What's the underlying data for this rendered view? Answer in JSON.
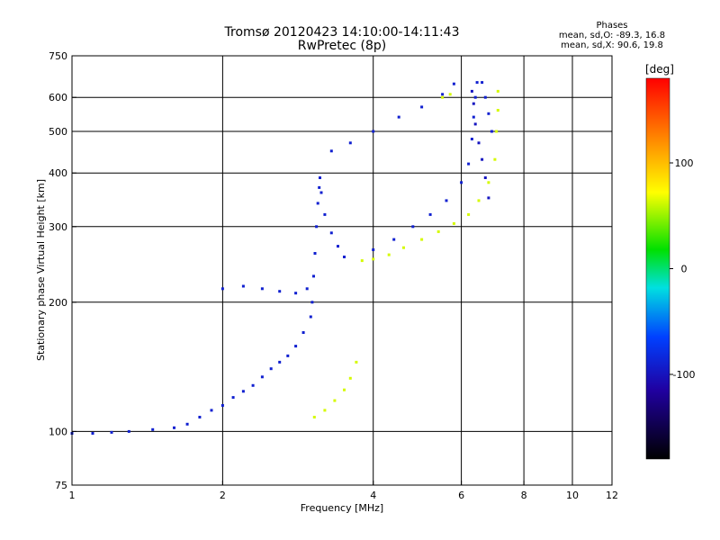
{
  "header": {
    "title_line1": "Tromsø 20120423 14:10:00-14:11:43",
    "title_line2": "RwPretec (8p)"
  },
  "phases_box": {
    "heading": "Phases",
    "line_o": "mean, sd,O: -89.3, 16.8",
    "line_x": "mean, sd,X:  90.6, 19.8"
  },
  "colorbar": {
    "unit_label": "[deg]",
    "ticks": [
      "100",
      "0",
      "-100"
    ],
    "tick_values": [
      100,
      0,
      -100
    ],
    "min": -180,
    "max": 180
  },
  "colors": {
    "o_mode": "#1f3fe0",
    "x_mode": "#e6e619",
    "grid": "#000000"
  },
  "chart_data": {
    "type": "scatter",
    "title": "Tromsø 20120423 14:10:00-14:11:43",
    "subtitle": "RwPretec (8p)",
    "xlabel": "Frequency [MHz]",
    "ylabel": "Stationary phase Virtual Height [km]",
    "xscale": "log",
    "yscale": "log",
    "xlim": [
      1,
      12
    ],
    "ylim": [
      75,
      750
    ],
    "grid": true,
    "x_ticks": [
      1,
      2,
      4,
      6,
      8,
      10,
      12
    ],
    "x_tick_labels": [
      "1",
      "2",
      "4",
      "6",
      "8",
      "10",
      "12"
    ],
    "x_grid": [
      2,
      4,
      6,
      8,
      10
    ],
    "y_ticks": [
      75,
      100,
      200,
      300,
      400,
      500,
      600,
      750
    ],
    "y_tick_labels": [
      "75",
      "100",
      "200",
      "300",
      "400",
      "500",
      "600",
      "750"
    ],
    "y_grid": [
      100,
      200,
      300,
      400,
      500,
      600
    ],
    "color_scale": "phase [deg]",
    "series": [
      {
        "mode": "O",
        "phase_deg": -90,
        "points": [
          [
            1.0,
            99
          ],
          [
            1.1,
            99
          ],
          [
            1.2,
            99.5
          ],
          [
            1.3,
            100
          ],
          [
            1.45,
            101
          ],
          [
            1.6,
            102
          ],
          [
            1.7,
            104
          ],
          [
            1.8,
            108
          ],
          [
            1.9,
            112
          ],
          [
            2.0,
            115
          ],
          [
            2.1,
            120
          ],
          [
            2.2,
            124
          ],
          [
            2.3,
            128
          ],
          [
            2.4,
            134
          ],
          [
            2.5,
            140
          ],
          [
            2.6,
            145
          ],
          [
            2.7,
            150
          ],
          [
            2.8,
            158
          ],
          [
            2.9,
            170
          ],
          [
            3.0,
            185
          ],
          [
            3.02,
            200
          ],
          [
            3.04,
            230
          ],
          [
            3.06,
            260
          ],
          [
            3.08,
            300
          ],
          [
            3.1,
            340
          ],
          [
            3.12,
            370
          ],
          [
            3.13,
            390
          ],
          [
            3.15,
            360
          ],
          [
            3.2,
            320
          ],
          [
            3.3,
            290
          ],
          [
            3.4,
            270
          ],
          [
            3.5,
            255
          ],
          [
            2.0,
            215
          ],
          [
            2.2,
            218
          ],
          [
            2.4,
            215
          ],
          [
            2.6,
            212
          ],
          [
            2.8,
            210
          ],
          [
            2.95,
            215
          ],
          [
            3.3,
            450
          ],
          [
            3.6,
            470
          ],
          [
            4.0,
            500
          ],
          [
            4.5,
            540
          ],
          [
            5.0,
            570
          ],
          [
            5.5,
            610
          ],
          [
            5.8,
            645
          ],
          [
            4.0,
            265
          ],
          [
            4.4,
            280
          ],
          [
            4.8,
            300
          ],
          [
            5.2,
            320
          ],
          [
            5.6,
            345
          ],
          [
            6.0,
            380
          ],
          [
            6.2,
            420
          ],
          [
            6.3,
            480
          ],
          [
            6.35,
            540
          ],
          [
            6.4,
            600
          ],
          [
            6.45,
            650
          ],
          [
            6.6,
            650
          ],
          [
            6.7,
            600
          ],
          [
            6.8,
            550
          ],
          [
            6.9,
            500
          ]
        ]
      },
      {
        "mode": "X",
        "phase_deg": 90,
        "points": [
          [
            3.05,
            108
          ],
          [
            3.2,
            112
          ],
          [
            3.35,
            118
          ],
          [
            3.5,
            125
          ],
          [
            3.6,
            133
          ],
          [
            3.7,
            145
          ],
          [
            3.8,
            250
          ],
          [
            4.0,
            252
          ],
          [
            4.3,
            258
          ],
          [
            4.6,
            268
          ],
          [
            5.0,
            280
          ],
          [
            5.4,
            292
          ],
          [
            5.8,
            305
          ],
          [
            6.2,
            320
          ],
          [
            6.5,
            345
          ],
          [
            6.8,
            380
          ],
          [
            7.0,
            430
          ],
          [
            7.05,
            500
          ],
          [
            7.1,
            560
          ],
          [
            7.1,
            620
          ],
          [
            5.5,
            600
          ],
          [
            5.7,
            610
          ]
        ]
      },
      {
        "mode": "O-wide",
        "phase_deg": -100,
        "points": [
          [
            6.3,
            620
          ],
          [
            6.35,
            580
          ],
          [
            6.4,
            520
          ],
          [
            6.5,
            470
          ],
          [
            6.6,
            430
          ],
          [
            6.7,
            390
          ],
          [
            6.8,
            350
          ]
        ]
      }
    ]
  }
}
